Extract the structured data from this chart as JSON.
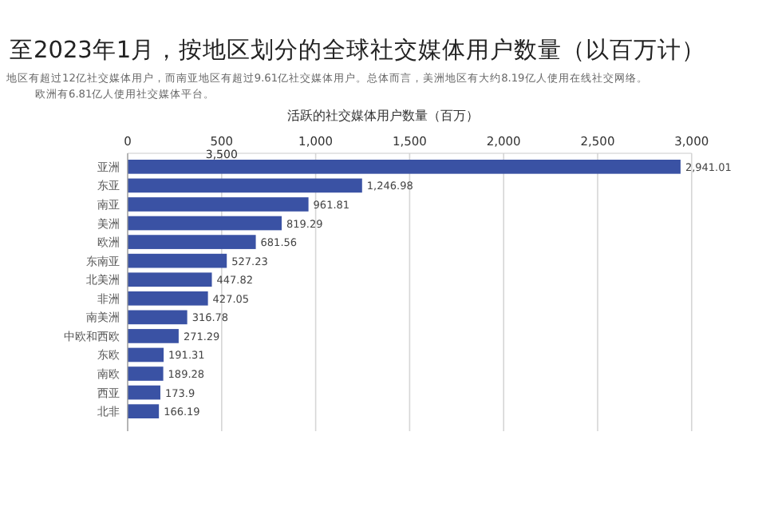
{
  "chart_data": {
    "type": "bar",
    "orientation": "horizontal",
    "title": "至2023年1月，按地区划分的全球社交媒体用户数量（以百万计）",
    "subtitle": "地区有超过12亿社交媒体用户，而南亚地区有超过9.61亿社交媒体用户。总体而言，美洲地区有大约8.19亿人使用在线社交网络。欧洲有6.81亿人使用社交媒体平台。",
    "xlabel": "活跃的社交媒体用户数量（百万）",
    "categories": [
      "亚洲",
      "东亚",
      "南亚",
      "美洲",
      "欧洲",
      "东南亚",
      "北美洲",
      "非洲",
      "南美洲",
      "中欧和西欧",
      "东欧",
      "南欧",
      "西亚",
      "北非"
    ],
    "values": [
      2941.01,
      1246.98,
      961.81,
      819.29,
      681.56,
      527.23,
      447.82,
      427.05,
      316.78,
      271.29,
      191.31,
      189.28,
      173.9,
      166.19
    ],
    "value_labels": [
      "2,941.01",
      "1,246.98",
      "961.81",
      "819.29",
      "681.56",
      "527.23",
      "447.82",
      "427.05",
      "316.78",
      "271.29",
      "191.31",
      "189.28",
      "173.9",
      "166.19"
    ],
    "color": "#3a52a4",
    "xlim": [
      0,
      3000
    ],
    "xticks": [
      0,
      {
        "value": 500,
        "label": "500"
      },
      {
        "value": 1000,
        "label": "1,000"
      },
      {
        "value": 1500,
        "label": "1,500"
      },
      {
        "value": 2000,
        "label": "2,000"
      },
      {
        "value": 2500,
        "label": "2,500"
      },
      {
        "value": 3000,
        "label": "3,000"
      }
    ],
    "grid": "x",
    "annotations": [
      "3,500"
    ]
  }
}
